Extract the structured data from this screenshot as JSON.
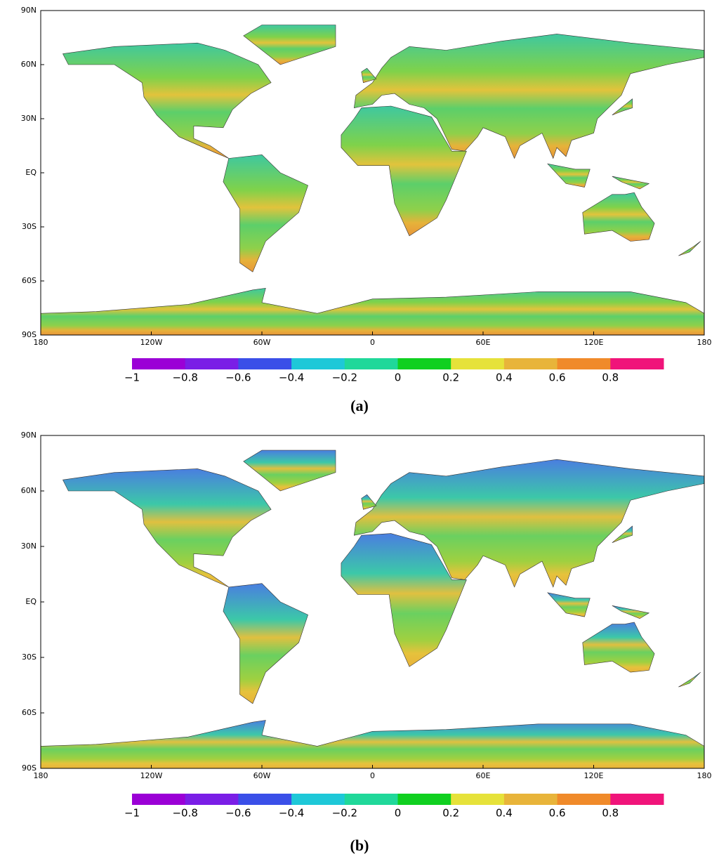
{
  "panels": [
    {
      "caption": "(a)",
      "lat_labels": [
        "90N",
        "60N",
        "30N",
        "EQ",
        "30S",
        "60S",
        "90S"
      ],
      "lon_labels": [
        "180",
        "120W",
        "60W",
        "0",
        "60E",
        "120E",
        "180"
      ],
      "colorbar": {
        "colors": [
          "#9b00d6",
          "#7a1ee6",
          "#3a4fe8",
          "#1ec8d8",
          "#20d89a",
          "#10d020",
          "#e6e23a",
          "#e8b43a",
          "#f08a2a",
          "#f0147a"
        ],
        "labels": [
          "−1",
          "−0.8",
          "−0.6",
          "−0.4",
          "−0.2",
          "0",
          "0.2",
          "0.4",
          "0.6",
          "0.8"
        ]
      }
    },
    {
      "caption": "(b)",
      "lat_labels": [
        "90N",
        "60N",
        "30N",
        "EQ",
        "30S",
        "60S",
        "90S"
      ],
      "lon_labels": [
        "180",
        "120W",
        "60W",
        "0",
        "60E",
        "120E",
        "180"
      ],
      "colorbar": {
        "colors": [
          "#9b00d6",
          "#7a1ee6",
          "#3a4fe8",
          "#1ec8d8",
          "#20d89a",
          "#10d020",
          "#e6e23a",
          "#e8b43a",
          "#f08a2a",
          "#f0147a"
        ],
        "labels": [
          "−1",
          "−0.8",
          "−0.6",
          "−0.4",
          "−0.2",
          "0",
          "0.2",
          "0.4",
          "0.6",
          "0.8"
        ]
      }
    }
  ]
}
